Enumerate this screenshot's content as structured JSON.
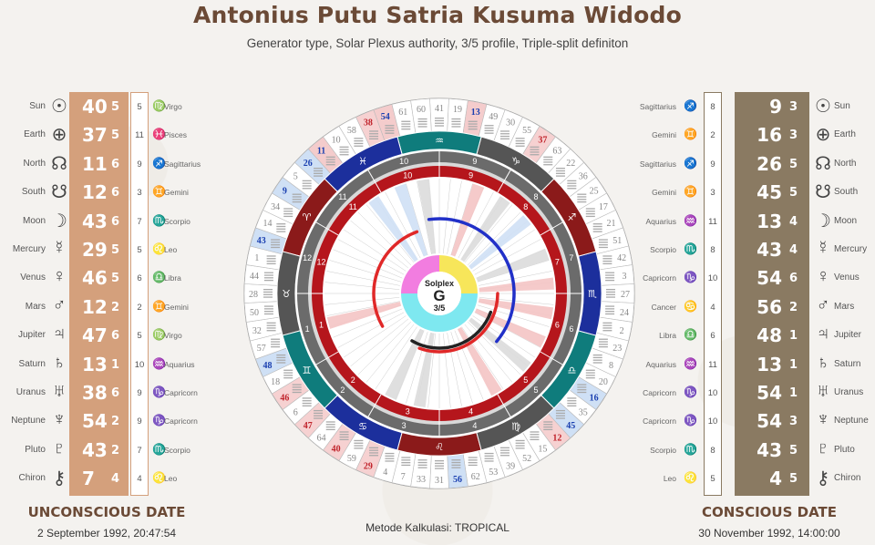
{
  "header": {
    "title": "Antonius Putu Satria Kusuma Widodo",
    "subtitle": "Generator type, Solar Plexus authority, 3/5 profile, Triple-split definiton"
  },
  "colors": {
    "design": "#d4a07c",
    "personality": "#8a7a62",
    "title": "#6b4a36"
  },
  "unconscious": {
    "heading": "UNCONSCIOUS DATE",
    "date": "2 September 1992, 20:47:54",
    "rows": [
      {
        "planet": "Sun",
        "symbol": "☉",
        "gate": "40",
        "line": "5",
        "house": "5",
        "zodiac_symbol": "♍",
        "zodiac": "Virgo"
      },
      {
        "planet": "Earth",
        "symbol": "⊕",
        "gate": "37",
        "line": "5",
        "house": "11",
        "zodiac_symbol": "♓",
        "zodiac": "Pisces"
      },
      {
        "planet": "North",
        "symbol": "☊",
        "gate": "11",
        "line": "6",
        "house": "9",
        "zodiac_symbol": "♐",
        "zodiac": "Sagittarius"
      },
      {
        "planet": "South",
        "symbol": "☋",
        "gate": "12",
        "line": "6",
        "house": "3",
        "zodiac_symbol": "♊",
        "zodiac": "Gemini"
      },
      {
        "planet": "Moon",
        "symbol": "☽",
        "gate": "43",
        "line": "6",
        "house": "7",
        "zodiac_symbol": "♏",
        "zodiac": "Scorpio"
      },
      {
        "planet": "Mercury",
        "symbol": "☿",
        "gate": "29",
        "line": "5",
        "house": "5",
        "zodiac_symbol": "♌",
        "zodiac": "Leo"
      },
      {
        "planet": "Venus",
        "symbol": "♀",
        "gate": "46",
        "line": "5",
        "house": "6",
        "zodiac_symbol": "♎",
        "zodiac": "Libra"
      },
      {
        "planet": "Mars",
        "symbol": "♂",
        "gate": "12",
        "line": "2",
        "house": "2",
        "zodiac_symbol": "♊",
        "zodiac": "Gemini"
      },
      {
        "planet": "Jupiter",
        "symbol": "♃",
        "gate": "47",
        "line": "6",
        "house": "5",
        "zodiac_symbol": "♍",
        "zodiac": "Virgo"
      },
      {
        "planet": "Saturn",
        "symbol": "♄",
        "gate": "13",
        "line": "1",
        "house": "10",
        "zodiac_symbol": "♒",
        "zodiac": "Aquarius"
      },
      {
        "planet": "Uranus",
        "symbol": "♅",
        "gate": "38",
        "line": "6",
        "house": "9",
        "zodiac_symbol": "♑",
        "zodiac": "Capricorn"
      },
      {
        "planet": "Neptune",
        "symbol": "♆",
        "gate": "54",
        "line": "2",
        "house": "9",
        "zodiac_symbol": "♑",
        "zodiac": "Capricorn"
      },
      {
        "planet": "Pluto",
        "symbol": "♇",
        "gate": "43",
        "line": "2",
        "house": "7",
        "zodiac_symbol": "♏",
        "zodiac": "Scorpio"
      },
      {
        "planet": "Chiron",
        "symbol": "⚷",
        "gate": "7",
        "line": "4",
        "house": "4",
        "zodiac_symbol": "♌",
        "zodiac": "Leo"
      }
    ]
  },
  "conscious": {
    "heading": "CONSCIOUS DATE",
    "date": "30 November 1992, 14:00:00",
    "rows": [
      {
        "planet": "Sun",
        "symbol": "☉",
        "gate": "9",
        "line": "3",
        "house": "8",
        "zodiac_symbol": "♐",
        "zodiac": "Sagittarius"
      },
      {
        "planet": "Earth",
        "symbol": "⊕",
        "gate": "16",
        "line": "3",
        "house": "2",
        "zodiac_symbol": "♊",
        "zodiac": "Gemini"
      },
      {
        "planet": "North",
        "symbol": "☊",
        "gate": "26",
        "line": "5",
        "house": "9",
        "zodiac_symbol": "♐",
        "zodiac": "Sagittarius"
      },
      {
        "planet": "South",
        "symbol": "☋",
        "gate": "45",
        "line": "5",
        "house": "3",
        "zodiac_symbol": "♊",
        "zodiac": "Gemini"
      },
      {
        "planet": "Moon",
        "symbol": "☽",
        "gate": "13",
        "line": "4",
        "house": "11",
        "zodiac_symbol": "♒",
        "zodiac": "Aquarius"
      },
      {
        "planet": "Mercury",
        "symbol": "☿",
        "gate": "43",
        "line": "4",
        "house": "8",
        "zodiac_symbol": "♏",
        "zodiac": "Scorpio"
      },
      {
        "planet": "Venus",
        "symbol": "♀",
        "gate": "54",
        "line": "6",
        "house": "10",
        "zodiac_symbol": "♑",
        "zodiac": "Capricorn"
      },
      {
        "planet": "Mars",
        "symbol": "♂",
        "gate": "56",
        "line": "2",
        "house": "4",
        "zodiac_symbol": "♋",
        "zodiac": "Cancer"
      },
      {
        "planet": "Jupiter",
        "symbol": "♃",
        "gate": "48",
        "line": "1",
        "house": "6",
        "zodiac_symbol": "♎",
        "zodiac": "Libra"
      },
      {
        "planet": "Saturn",
        "symbol": "♄",
        "gate": "13",
        "line": "1",
        "house": "11",
        "zodiac_symbol": "♒",
        "zodiac": "Aquarius"
      },
      {
        "planet": "Uranus",
        "symbol": "♅",
        "gate": "54",
        "line": "1",
        "house": "10",
        "zodiac_symbol": "♑",
        "zodiac": "Capricorn"
      },
      {
        "planet": "Neptune",
        "symbol": "♆",
        "gate": "54",
        "line": "3",
        "house": "10",
        "zodiac_symbol": "♑",
        "zodiac": "Capricorn"
      },
      {
        "planet": "Pluto",
        "symbol": "♇",
        "gate": "43",
        "line": "5",
        "house": "8",
        "zodiac_symbol": "♏",
        "zodiac": "Scorpio"
      },
      {
        "planet": "Chiron",
        "symbol": "⚷",
        "gate": "4",
        "line": "5",
        "house": "5",
        "zodiac_symbol": "♌",
        "zodiac": "Leo"
      }
    ]
  },
  "wheel": {
    "center_label": "Solplex",
    "center_letter": "G",
    "center_profile": "3/5",
    "outer_gates": [
      "41",
      "19",
      "13",
      "49",
      "30",
      "55",
      "37",
      "63",
      "22",
      "36",
      "25",
      "17",
      "21",
      "51",
      "42",
      "3",
      "27",
      "24",
      "2",
      "23",
      "8",
      "20",
      "16",
      "35",
      "45",
      "12",
      "15",
      "52",
      "39",
      "53",
      "62",
      "56",
      "31",
      "33",
      "7",
      "4",
      "29",
      "59",
      "40",
      "64",
      "47",
      "6",
      "46",
      "18",
      "48",
      "57",
      "32",
      "50",
      "28",
      "44",
      "1",
      "43",
      "14",
      "34",
      "9",
      "5",
      "26",
      "11",
      "10",
      "58",
      "38",
      "54",
      "61",
      "60"
    ],
    "highlight_gates": {
      "design": [
        "37",
        "29",
        "38",
        "12",
        "47",
        "46",
        "40",
        "13",
        "54",
        "11"
      ],
      "personality": [
        "54",
        "43",
        "13",
        "56",
        "45",
        "16",
        "26",
        "48",
        "9",
        "11"
      ]
    },
    "houses": [
      "1",
      "2",
      "3",
      "4",
      "5",
      "6",
      "7",
      "8",
      "9",
      "10",
      "11",
      "12"
    ],
    "house_markers": {
      "yellow": [
        "10",
        "7",
        "1",
        "4"
      ]
    },
    "zodiac_signs": [
      "♈",
      "♉",
      "♊",
      "♋",
      "♌",
      "♍",
      "♎",
      "♏",
      "♐",
      "♑",
      "♒",
      "♓"
    ]
  },
  "footer": {
    "method": "Metode Kalkulasi: TROPICAL"
  }
}
